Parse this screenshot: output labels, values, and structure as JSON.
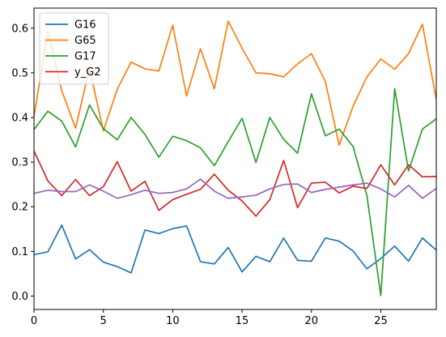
{
  "chart_data": {
    "type": "line",
    "title": "",
    "xlabel": "",
    "ylabel": "",
    "xlim": [
      0,
      29
    ],
    "ylim": [
      -0.03,
      0.645
    ],
    "grid": false,
    "legend_location": "upper-left",
    "x": [
      0,
      1,
      2,
      3,
      4,
      5,
      6,
      7,
      8,
      9,
      10,
      11,
      12,
      13,
      14,
      15,
      16,
      17,
      18,
      19,
      20,
      21,
      22,
      23,
      24,
      25,
      26,
      27,
      28,
      29
    ],
    "x_ticks": [
      {
        "value": 0,
        "label": "0"
      },
      {
        "value": 5,
        "label": "5"
      },
      {
        "value": 10,
        "label": "10"
      },
      {
        "value": 15,
        "label": "15"
      },
      {
        "value": 20,
        "label": "20"
      },
      {
        "value": 25,
        "label": "25"
      }
    ],
    "y_ticks": [
      {
        "value": 0.0,
        "label": "0.0"
      },
      {
        "value": 0.1,
        "label": "0.1"
      },
      {
        "value": 0.2,
        "label": "0.2"
      },
      {
        "value": 0.3,
        "label": "0.3"
      },
      {
        "value": 0.4,
        "label": "0.4"
      },
      {
        "value": 0.5,
        "label": "0.5"
      },
      {
        "value": 0.6,
        "label": "0.6"
      }
    ],
    "series": [
      {
        "name": "G16",
        "color": "#1f77b4",
        "in_legend": true,
        "values": [
          0.093,
          0.099,
          0.159,
          0.083,
          0.104,
          0.076,
          0.066,
          0.052,
          0.148,
          0.14,
          0.151,
          0.157,
          0.077,
          0.072,
          0.109,
          0.054,
          0.089,
          0.077,
          0.13,
          0.08,
          0.078,
          0.13,
          0.123,
          0.101,
          0.061,
          0.084,
          0.112,
          0.078,
          0.13,
          0.103
        ]
      },
      {
        "name": "G65",
        "color": "#ff7f0e",
        "in_legend": true,
        "values": [
          0.402,
          0.593,
          0.46,
          0.376,
          0.51,
          0.37,
          0.463,
          0.524,
          0.509,
          0.504,
          0.607,
          0.448,
          0.554,
          0.464,
          0.616,
          0.555,
          0.5,
          0.498,
          0.491,
          0.52,
          0.543,
          0.481,
          0.338,
          0.425,
          0.491,
          0.531,
          0.508,
          0.543,
          0.609,
          0.44
        ]
      },
      {
        "name": "G17",
        "color": "#2ca02c",
        "in_legend": true,
        "values": [
          0.373,
          0.414,
          0.392,
          0.334,
          0.428,
          0.375,
          0.35,
          0.4,
          0.362,
          0.311,
          0.358,
          0.348,
          0.332,
          0.292,
          0.346,
          0.398,
          0.299,
          0.4,
          0.351,
          0.32,
          0.453,
          0.359,
          0.374,
          0.335,
          0.225,
          0.001,
          0.465,
          0.28,
          0.374,
          0.397
        ]
      },
      {
        "name": "y_G2",
        "color": "#d62728",
        "in_legend": true,
        "values": [
          0.325,
          0.258,
          0.225,
          0.261,
          0.225,
          0.245,
          0.301,
          0.235,
          0.257,
          0.192,
          0.216,
          0.228,
          0.239,
          0.273,
          0.237,
          0.213,
          0.179,
          0.216,
          0.304,
          0.198,
          0.253,
          0.255,
          0.231,
          0.246,
          0.241,
          0.294,
          0.249,
          0.294,
          0.267,
          0.268
        ]
      },
      {
        "name": "",
        "color": "#9467bd",
        "in_legend": false,
        "values": [
          0.23,
          0.237,
          0.234,
          0.234,
          0.249,
          0.235,
          0.219,
          0.227,
          0.237,
          0.23,
          0.232,
          0.24,
          0.262,
          0.235,
          0.219,
          0.222,
          0.226,
          0.24,
          0.25,
          0.251,
          0.232,
          0.239,
          0.244,
          0.249,
          0.253,
          0.24,
          0.222,
          0.248,
          0.219,
          0.241
        ]
      }
    ]
  }
}
